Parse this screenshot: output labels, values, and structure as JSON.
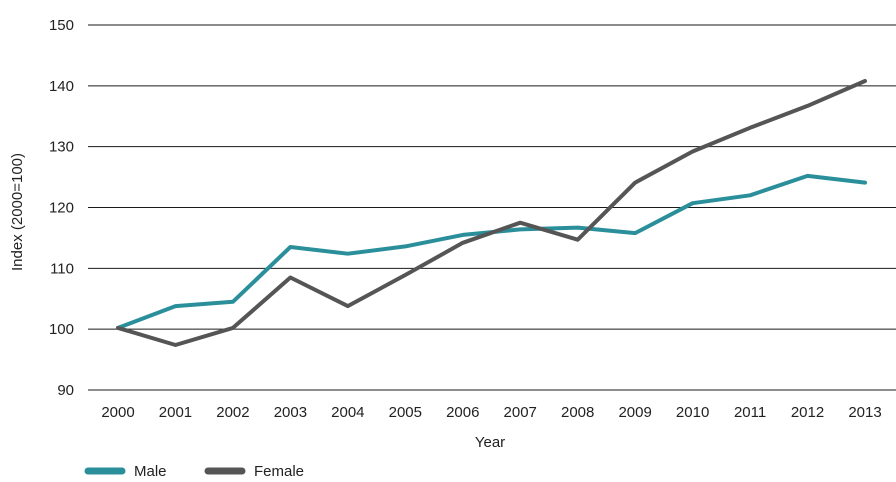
{
  "chart_data": {
    "type": "line",
    "title": "",
    "xlabel": "Year",
    "ylabel": "Index (2000=100)",
    "x": [
      "2000",
      "2001",
      "2002",
      "2003",
      "2004",
      "2005",
      "2006",
      "2007",
      "2008",
      "2009",
      "2010",
      "2011",
      "2012",
      "2013"
    ],
    "ylim": [
      90,
      150
    ],
    "yticks": [
      90,
      100,
      110,
      120,
      130,
      140,
      150
    ],
    "grid": "horizontal",
    "legend_position": "bottom-left",
    "series": [
      {
        "name": "Male",
        "color": "#2a8f9a",
        "values": [
          100.2,
          103.8,
          104.5,
          113.5,
          112.4,
          113.6,
          115.5,
          116.4,
          116.7,
          115.8,
          120.7,
          122.0,
          125.2,
          124.1
        ]
      },
      {
        "name": "Female",
        "color": "#555555",
        "values": [
          100.2,
          97.4,
          100.2,
          108.5,
          103.8,
          108.9,
          114.2,
          117.5,
          114.7,
          124.1,
          129.2,
          133.1,
          136.7,
          140.8
        ]
      }
    ]
  }
}
